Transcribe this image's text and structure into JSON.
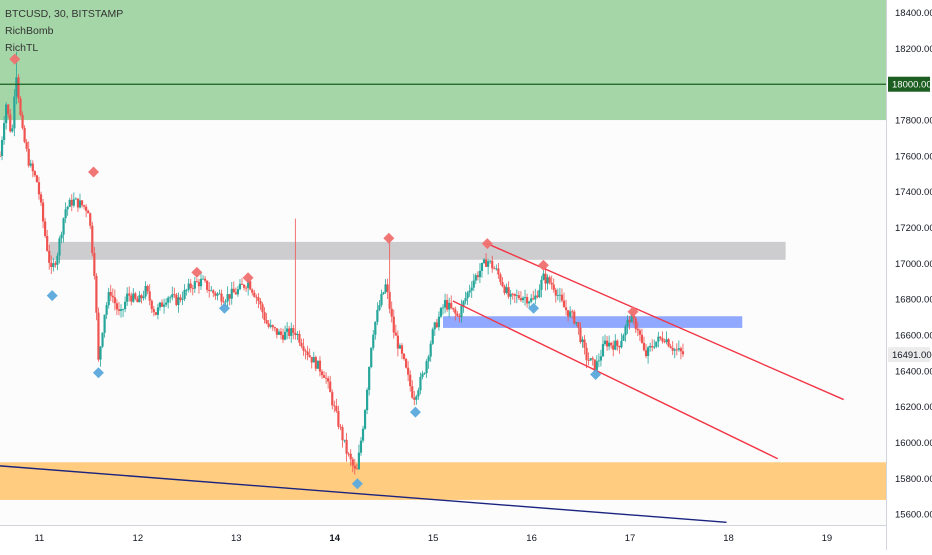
{
  "legend": {
    "symbol": "BTCUSD, 30, BITSTAMP",
    "indicators": [
      "RichBomb",
      "RichTL"
    ]
  },
  "chart_data": {
    "type": "candlestick",
    "y_ticks": [
      15600,
      15800,
      16000,
      16200,
      16400,
      16600,
      16800,
      17000,
      17200,
      17400,
      17600,
      17800,
      18000,
      18200,
      18400
    ],
    "y_tick_labels": [
      "15600.00",
      "15800.00",
      "16000.00",
      "16200.00",
      "16400.00",
      "16600.00",
      "16800.00",
      "17000.00",
      "17200.00",
      "17400.00",
      "17600.00",
      "17800.00",
      "18000.00",
      "18200.00",
      "18400.00"
    ],
    "ylim": [
      15540,
      18470
    ],
    "xlim": [
      10.6,
      19.6
    ],
    "x_ticks": [
      11,
      12,
      13,
      14,
      15,
      16,
      17,
      18,
      19
    ],
    "x_tick_labels": [
      "11",
      "12",
      "13",
      "14",
      "15",
      "16",
      "17",
      "18",
      "19"
    ],
    "bold_x_tick": 14,
    "price_label": {
      "value": 16491,
      "text": "16491.00"
    },
    "level_line": {
      "value": 18000,
      "text": "18000.00",
      "color": "#1b5e20"
    },
    "zones": [
      {
        "name": "supply",
        "y1": 17800,
        "y2": 18470,
        "x1": 10.6,
        "x2": 19.6,
        "color": "#a5d6a7"
      },
      {
        "name": "demand",
        "y1": 15680,
        "y2": 15890,
        "x1": 10.6,
        "x2": 19.6,
        "color": "#ffcc80"
      },
      {
        "name": "resistance",
        "y1": 17020,
        "y2": 17120,
        "x1": 11.1,
        "x2": 18.58,
        "color": "#c4c4c8"
      },
      {
        "name": "support",
        "y1": 16640,
        "y2": 16705,
        "x1": 15.1,
        "x2": 18.14,
        "color": "#90a8ff"
      }
    ],
    "trendlines": [
      {
        "name": "channel-top",
        "x1": 15.55,
        "y1": 17110,
        "x2": 19.17,
        "y2": 16240,
        "color": "#f23645"
      },
      {
        "name": "channel-bottom",
        "x1": 15.2,
        "y1": 16790,
        "x2": 18.5,
        "y2": 15910,
        "color": "#f23645"
      },
      {
        "name": "long-trend",
        "x1": 10.6,
        "y1": 15870,
        "x2": 17.98,
        "y2": 15555,
        "color": "#1a237e"
      }
    ],
    "markers_high": [
      {
        "x": 10.75,
        "y": 18140
      },
      {
        "x": 11.55,
        "y": 17510
      },
      {
        "x": 12.6,
        "y": 16950
      },
      {
        "x": 13.12,
        "y": 16920
      },
      {
        "x": 14.55,
        "y": 17140
      },
      {
        "x": 15.55,
        "y": 17110
      },
      {
        "x": 16.12,
        "y": 16990
      },
      {
        "x": 17.03,
        "y": 16730
      }
    ],
    "markers_low": [
      {
        "x": 11.13,
        "y": 16820
      },
      {
        "x": 11.6,
        "y": 16390
      },
      {
        "x": 12.88,
        "y": 16750
      },
      {
        "x": 14.23,
        "y": 15770
      },
      {
        "x": 14.82,
        "y": 16170
      },
      {
        "x": 16.02,
        "y": 16750
      },
      {
        "x": 16.65,
        "y": 16380
      }
    ],
    "path": [
      [
        10.6,
        17600
      ],
      [
        10.66,
        17900
      ],
      [
        10.72,
        17700
      ],
      [
        10.76,
        18100
      ],
      [
        10.82,
        17750
      ],
      [
        10.9,
        17550
      ],
      [
        10.98,
        17450
      ],
      [
        11.06,
        17150
      ],
      [
        11.12,
        16950
      ],
      [
        11.18,
        17050
      ],
      [
        11.26,
        17300
      ],
      [
        11.34,
        17350
      ],
      [
        11.42,
        17330
      ],
      [
        11.5,
        17300
      ],
      [
        11.56,
        16950
      ],
      [
        11.6,
        16450
      ],
      [
        11.66,
        16720
      ],
      [
        11.72,
        16850
      ],
      [
        11.82,
        16700
      ],
      [
        11.9,
        16830
      ],
      [
        12.0,
        16780
      ],
      [
        12.08,
        16850
      ],
      [
        12.18,
        16720
      ],
      [
        12.3,
        16820
      ],
      [
        12.4,
        16790
      ],
      [
        12.55,
        16880
      ],
      [
        12.65,
        16900
      ],
      [
        12.75,
        16840
      ],
      [
        12.88,
        16810
      ],
      [
        13.0,
        16840
      ],
      [
        13.12,
        16900
      ],
      [
        13.22,
        16800
      ],
      [
        13.32,
        16650
      ],
      [
        13.45,
        16600
      ],
      [
        13.6,
        16620
      ],
      [
        13.75,
        16480
      ],
      [
        13.9,
        16380
      ],
      [
        14.0,
        16180
      ],
      [
        14.12,
        15950
      ],
      [
        14.22,
        15820
      ],
      [
        14.3,
        16150
      ],
      [
        14.38,
        16600
      ],
      [
        14.46,
        16780
      ],
      [
        14.52,
        16880
      ],
      [
        14.6,
        16620
      ],
      [
        14.7,
        16450
      ],
      [
        14.8,
        16250
      ],
      [
        14.9,
        16380
      ],
      [
        15.0,
        16620
      ],
      [
        15.12,
        16780
      ],
      [
        15.25,
        16700
      ],
      [
        15.4,
        16900
      ],
      [
        15.55,
        17020
      ],
      [
        15.65,
        16950
      ],
      [
        15.78,
        16800
      ],
      [
        15.9,
        16820
      ],
      [
        16.02,
        16790
      ],
      [
        16.12,
        16920
      ],
      [
        16.22,
        16880
      ],
      [
        16.32,
        16760
      ],
      [
        16.45,
        16680
      ],
      [
        16.55,
        16480
      ],
      [
        16.65,
        16420
      ],
      [
        16.75,
        16560
      ],
      [
        16.88,
        16540
      ],
      [
        17.0,
        16700
      ],
      [
        17.08,
        16640
      ],
      [
        17.15,
        16480
      ],
      [
        17.25,
        16560
      ],
      [
        17.35,
        16590
      ],
      [
        17.45,
        16520
      ],
      [
        17.55,
        16491
      ]
    ],
    "colors": {
      "up": "#26a69a",
      "down": "#ef5350",
      "high_marker": "#f07070",
      "low_marker": "#5ba9dc",
      "axis_text": "#131722",
      "axis_bg": "#ffffff",
      "price_label_bg": "#ececec",
      "plot_bg": "#fcfcfd"
    }
  }
}
